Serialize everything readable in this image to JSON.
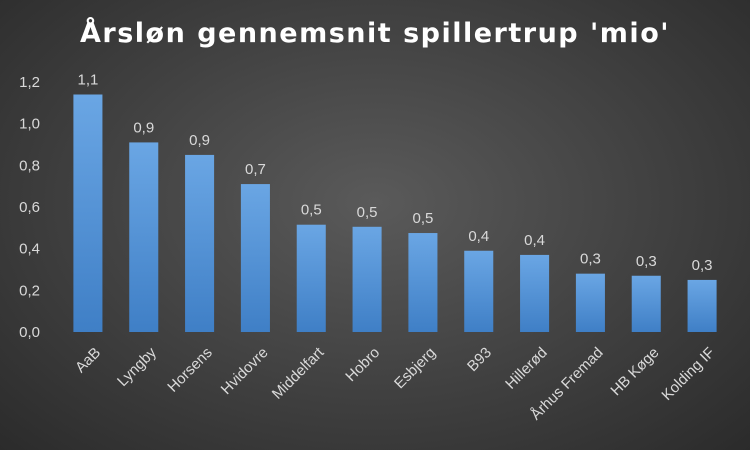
{
  "chart_data": {
    "type": "bar",
    "title": "Årsløn gennemsnit spillertrup 'mio'",
    "xlabel": "",
    "ylabel": "",
    "categories": [
      "AaB",
      "Lyngby",
      "Horsens",
      "Hvidovre",
      "Middelfart",
      "Hobro",
      "Esbjerg",
      "B93",
      "Hillerød",
      "Århus Fremad",
      "HB Køge",
      "Kolding IF"
    ],
    "values": [
      1.14,
      0.91,
      0.85,
      0.71,
      0.515,
      0.505,
      0.475,
      0.39,
      0.37,
      0.28,
      0.27,
      0.25
    ],
    "data_labels": [
      "1,1",
      "0,9",
      "0,9",
      "0,7",
      "0,5",
      "0,5",
      "0,5",
      "0,4",
      "0,4",
      "0,3",
      "0,3",
      "0,3"
    ],
    "ylim": [
      0,
      1.2
    ],
    "yticks": [
      0,
      0.2,
      0.4,
      0.6,
      0.8,
      1.0,
      1.2
    ],
    "ytick_labels": [
      "0,0",
      "0,2",
      "0,4",
      "0,6",
      "0,8",
      "1,0",
      "1,2"
    ],
    "grid": false,
    "legend": "none",
    "bar_color_top": "#6aa6e4",
    "bar_color_bottom": "#3f7fc6"
  }
}
